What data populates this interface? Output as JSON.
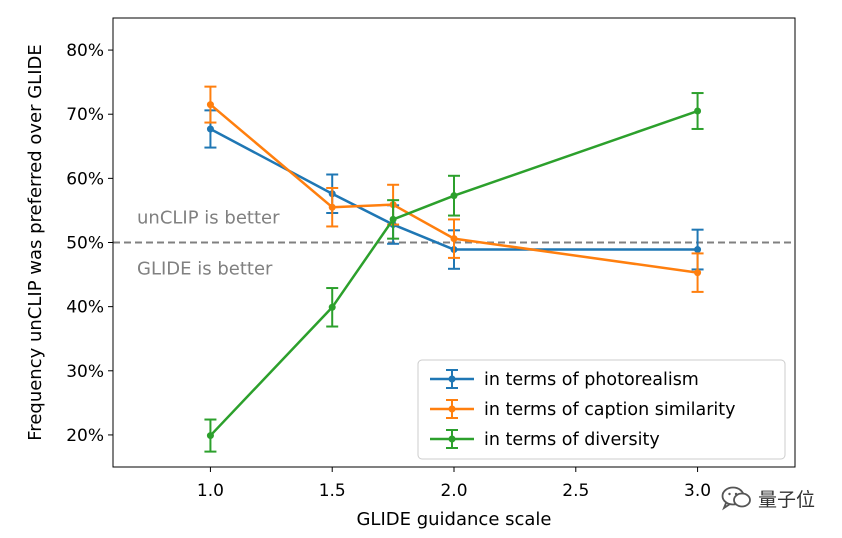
{
  "chart_data": {
    "type": "line",
    "xlabel": "GLIDE guidance scale",
    "ylabel": "Frequency unCLIP was preferred over GLIDE",
    "xlim": [
      0.6,
      3.4
    ],
    "ylim": [
      15,
      85
    ],
    "xticks": [
      1.0,
      1.5,
      2.0,
      2.5,
      3.0
    ],
    "xtick_labels": [
      "1.0",
      "1.5",
      "2.0",
      "2.5",
      "3.0"
    ],
    "yticks": [
      20,
      30,
      40,
      50,
      60,
      70,
      80
    ],
    "ytick_labels": [
      "20%",
      "30%",
      "40%",
      "50%",
      "60%",
      "70%",
      "80%"
    ],
    "reference_line": 50,
    "annotations": {
      "above": "unCLIP is better",
      "below": "GLIDE is better"
    },
    "legend_position": "lower-right",
    "series": [
      {
        "name": "in terms of photorealism",
        "color": "#1f77b4",
        "x": [
          1.0,
          1.5,
          1.75,
          2.0,
          3.0
        ],
        "values": [
          67.7,
          57.6,
          52.8,
          48.9,
          48.9
        ],
        "errors": [
          2.9,
          3.0,
          3.0,
          3.0,
          3.1
        ]
      },
      {
        "name": "in terms of caption similarity",
        "color": "#ff7f0e",
        "x": [
          1.0,
          1.5,
          1.75,
          2.0,
          3.0
        ],
        "values": [
          71.5,
          55.5,
          55.9,
          50.6,
          45.3
        ],
        "errors": [
          2.8,
          3.0,
          3.1,
          3.0,
          3.0
        ]
      },
      {
        "name": "in terms of diversity",
        "color": "#2ca02c",
        "x": [
          1.0,
          1.5,
          1.75,
          2.0,
          3.0
        ],
        "values": [
          19.9,
          39.9,
          53.6,
          57.3,
          70.5
        ],
        "errors": [
          2.5,
          3.0,
          3.0,
          3.1,
          2.8
        ]
      }
    ]
  },
  "watermark": {
    "text": "量子位",
    "icon": "wechat-icon"
  }
}
